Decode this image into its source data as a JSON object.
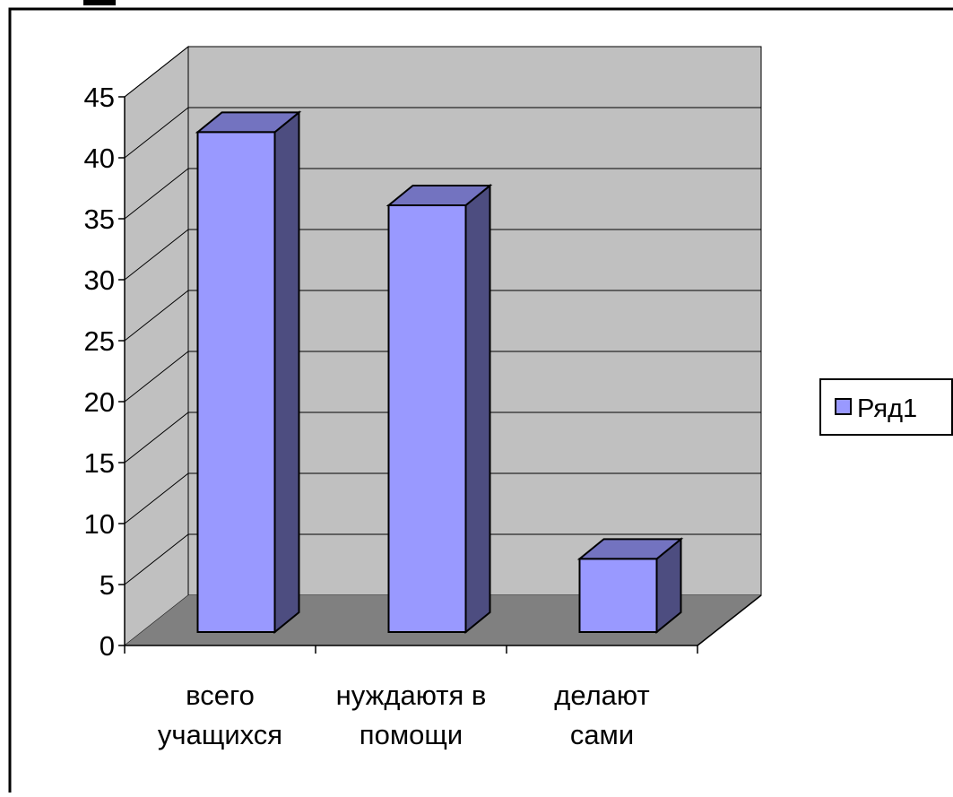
{
  "chart_data": {
    "type": "bar",
    "categories": [
      [
        "всего",
        "учащихся"
      ],
      [
        "нуждаютя в",
        "помощи"
      ],
      [
        "делают",
        "сами"
      ]
    ],
    "series": [
      {
        "name": "Ряд1",
        "values": [
          41,
          35,
          6
        ]
      }
    ],
    "ylim": [
      0,
      45
    ],
    "yticks": [
      0,
      5,
      10,
      15,
      20,
      25,
      30,
      35,
      40,
      45
    ],
    "grid": true,
    "legend": "right",
    "three_d": true,
    "colors": {
      "bar_front": "#9999ff",
      "bar_side": "#4d4d80",
      "bar_top": "#7373c0",
      "back_wall": "#c0c0c0",
      "side_wall": "#c0c0c0",
      "floor": "#808080"
    }
  }
}
